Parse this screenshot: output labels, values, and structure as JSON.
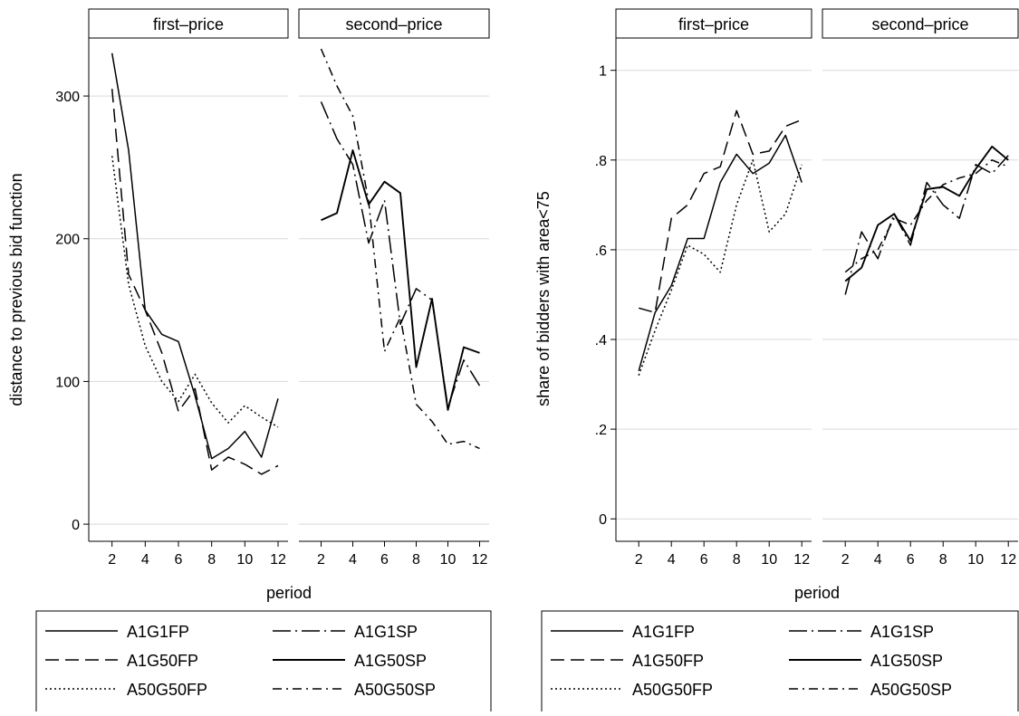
{
  "chart_data": [
    {
      "type": "line",
      "ylabel": "distance to previous bid function",
      "xlabel": "period",
      "ylim": [
        -12,
        340
      ],
      "xlim": [
        0.6,
        12.6
      ],
      "yticks": [
        0,
        100,
        200,
        300
      ],
      "ytick_labels": [
        "0",
        "100",
        "200",
        "300"
      ],
      "xticks": [
        2,
        4,
        6,
        8,
        10,
        12
      ],
      "xtick_labels": [
        "2",
        "4",
        "6",
        "8",
        "10",
        "12"
      ],
      "grid": true,
      "legend_position": "bottom",
      "panels": [
        {
          "title": "first–price",
          "series": [
            {
              "name": "A1G1FP",
              "dash": "solid",
              "x": [
                2,
                3,
                4,
                5,
                6,
                7,
                8,
                9,
                10,
                11,
                12
              ],
              "y": [
                330,
                262,
                150,
                133,
                128,
                90,
                46,
                53,
                65,
                47,
                88
              ]
            },
            {
              "name": "A1G50FP",
              "dash": "long-dash",
              "x": [
                2,
                3,
                4,
                5,
                6,
                7,
                8,
                9,
                10,
                11,
                12
              ],
              "y": [
                305,
                175,
                150,
                120,
                79,
                95,
                38,
                47,
                42,
                35,
                41
              ]
            },
            {
              "name": "A50G50FP",
              "dash": "dot",
              "x": [
                2,
                3,
                4,
                5,
                6,
                7,
                8,
                9,
                10,
                11,
                12
              ],
              "y": [
                258,
                168,
                125,
                100,
                86,
                105,
                85,
                71,
                83,
                75,
                68
              ]
            }
          ]
        },
        {
          "title": "second–price",
          "series": [
            {
              "name": "A1G1SP",
              "dash": "long-dash-dot",
              "x": [
                2,
                3,
                4,
                5,
                6,
                7,
                8,
                9,
                10,
                11,
                12
              ],
              "y": [
                296,
                270,
                252,
                197,
                227,
                140,
                165,
                157,
                82,
                115,
                97
              ]
            },
            {
              "name": "A1G50SP",
              "dash": "long-solid",
              "x": [
                2,
                3,
                4,
                5,
                6,
                7,
                8,
                9,
                10,
                11,
                12
              ],
              "y": [
                213,
                218,
                262,
                224,
                240,
                232,
                110,
                158,
                80,
                124,
                120
              ]
            },
            {
              "name": "A50G50SP",
              "dash": "dash-dot",
              "x": [
                2,
                3,
                4,
                5,
                6,
                7,
                8,
                9,
                10,
                11,
                12
              ],
              "y": [
                333,
                307,
                286,
                226,
                121,
                145,
                84,
                72,
                56,
                58,
                53
              ]
            }
          ]
        }
      ]
    },
    {
      "type": "line",
      "ylabel": "share of bidders with area<75",
      "xlabel": "period",
      "ylim": [
        -0.05,
        1.07
      ],
      "xlim": [
        0.6,
        12.6
      ],
      "yticks": [
        0,
        0.2,
        0.4,
        0.6,
        0.8,
        1
      ],
      "ytick_labels": [
        "0",
        ".2",
        ".4",
        ".6",
        ".8",
        "1"
      ],
      "xticks": [
        2,
        4,
        6,
        8,
        10,
        12
      ],
      "xtick_labels": [
        "2",
        "4",
        "6",
        "8",
        "10",
        "12"
      ],
      "grid": true,
      "legend_position": "bottom",
      "panels": [
        {
          "title": "first–price",
          "series": [
            {
              "name": "A1G1FP",
              "dash": "solid",
              "x": [
                2,
                3,
                4,
                5,
                6,
                7,
                8,
                9,
                10,
                11,
                12
              ],
              "y": [
                0.33,
                0.46,
                0.52,
                0.625,
                0.625,
                0.75,
                0.813,
                0.77,
                0.793,
                0.855,
                0.75
              ]
            },
            {
              "name": "A1G50FP",
              "dash": "long-dash",
              "x": [
                2,
                3,
                4,
                5,
                6,
                7,
                8,
                9,
                10,
                11,
                12
              ],
              "y": [
                0.47,
                0.46,
                0.67,
                0.7,
                0.77,
                0.785,
                0.91,
                0.813,
                0.82,
                0.875,
                0.89
              ]
            },
            {
              "name": "A50G50FP",
              "dash": "dot",
              "x": [
                2,
                3,
                4,
                5,
                6,
                7,
                8,
                9,
                10,
                11,
                12
              ],
              "y": [
                0.32,
                0.42,
                0.51,
                0.61,
                0.59,
                0.55,
                0.7,
                0.8,
                0.64,
                0.68,
                0.79
              ]
            }
          ]
        },
        {
          "title": "second–price",
          "series": [
            {
              "name": "A1G1SP",
              "dash": "long-dash-dot",
              "x": [
                2,
                3,
                4,
                5,
                6,
                7,
                8,
                9,
                10,
                11,
                12
              ],
              "y": [
                0.5,
                0.64,
                0.58,
                0.68,
                0.61,
                0.75,
                0.7,
                0.67,
                0.79,
                0.77,
                0.81
              ]
            },
            {
              "name": "A1G50SP",
              "dash": "long-solid",
              "x": [
                2,
                3,
                4,
                5,
                6,
                7,
                8,
                9,
                10,
                11,
                12
              ],
              "y": [
                0.53,
                0.56,
                0.655,
                0.68,
                0.62,
                0.735,
                0.74,
                0.72,
                0.78,
                0.83,
                0.8
              ]
            },
            {
              "name": "A50G50SP",
              "dash": "dash-dot",
              "x": [
                2,
                3,
                4,
                5,
                6,
                7,
                8,
                9,
                10,
                11,
                12
              ],
              "y": [
                0.55,
                0.58,
                0.6,
                0.67,
                0.655,
                0.71,
                0.745,
                0.76,
                0.77,
                0.8,
                0.785
              ]
            }
          ]
        }
      ]
    }
  ]
}
